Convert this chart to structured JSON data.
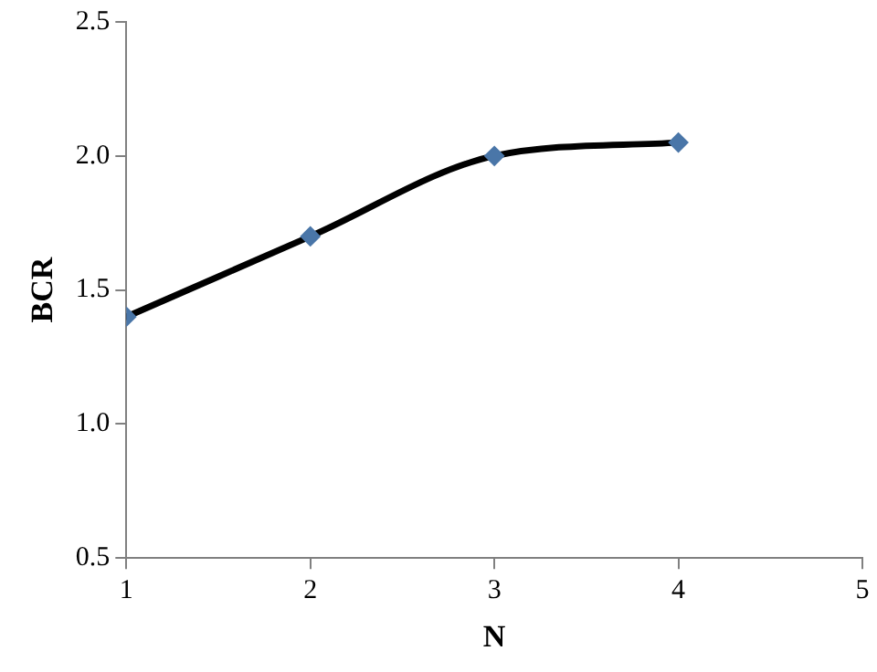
{
  "chart_data": {
    "type": "line",
    "xlabel": "N",
    "ylabel": "BCR",
    "x": [
      1,
      2,
      3,
      4
    ],
    "series": [
      {
        "color": "#000000",
        "colors": [
          "#4a76a8",
          "#4a76a8",
          "#4a76a8",
          "#4a76a8"
        ],
        "values": [
          1.4,
          1.7,
          2.0,
          2.05
        ]
      }
    ],
    "xlim": [
      1,
      5
    ],
    "xticks": [
      1,
      2,
      3,
      4,
      5
    ],
    "ylim": [
      0.5,
      2.5
    ],
    "yticks": [
      0.5,
      {
        "value": 1,
        "label": "1.0"
      },
      1.5,
      {
        "value": 2,
        "label": "2.0"
      },
      2.5
    ],
    "grid": false,
    "legend": false,
    "marker": "diamond",
    "line_style": "solid"
  }
}
